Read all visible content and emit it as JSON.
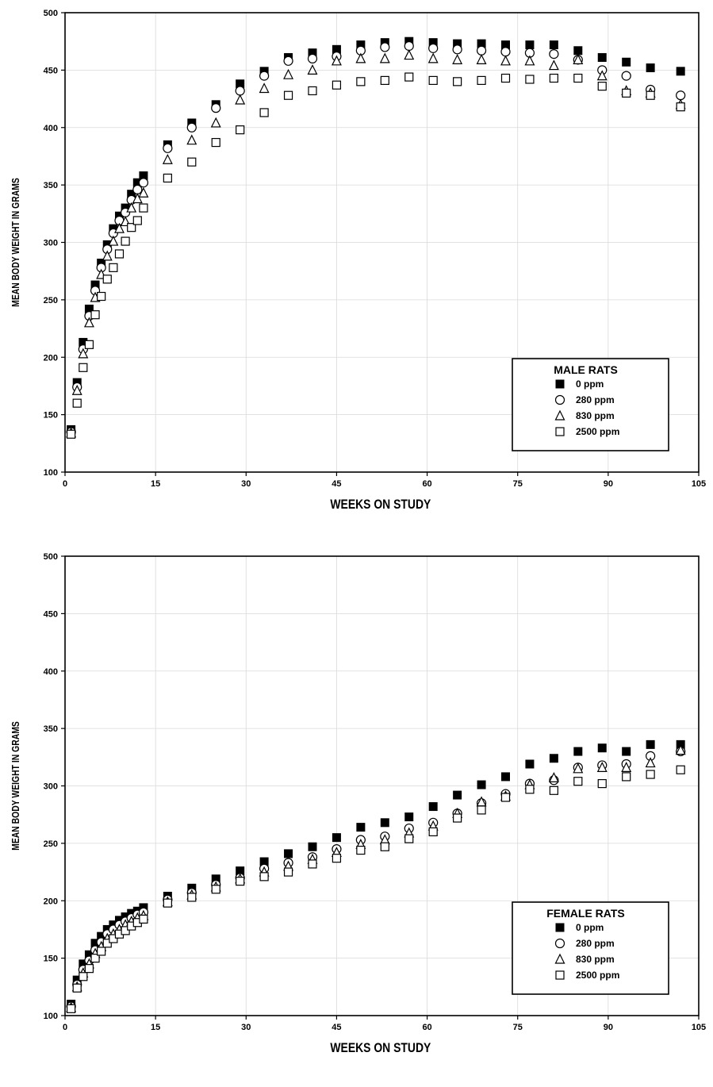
{
  "chart_data": [
    {
      "type": "scatter",
      "xlabel": "WEEKS ON STUDY",
      "ylabel": "MEAN BODY WEIGHT IN GRAMS",
      "xlim": [
        0,
        105
      ],
      "ylim": [
        100,
        500
      ],
      "xticks": [
        0,
        15,
        30,
        45,
        60,
        75,
        90,
        105
      ],
      "yticks": [
        100,
        150,
        200,
        250,
        300,
        350,
        400,
        450,
        500
      ],
      "grid": true,
      "legend": {
        "title": "MALE RATS",
        "placement": "bottom-right"
      },
      "x": [
        1,
        2,
        3,
        4,
        5,
        6,
        7,
        8,
        9,
        10,
        11,
        12,
        13,
        17,
        21,
        25,
        29,
        33,
        37,
        41,
        45,
        49,
        53,
        57,
        61,
        65,
        69,
        73,
        77,
        81,
        85,
        89,
        93,
        97,
        102
      ],
      "series": [
        {
          "name": "0 ppm",
          "marker": "filled-square",
          "values": [
            137,
            178,
            213,
            242,
            263,
            282,
            298,
            312,
            323,
            330,
            342,
            352,
            358,
            385,
            404,
            420,
            438,
            449,
            461,
            465,
            468,
            472,
            474,
            475,
            474,
            473,
            473,
            472,
            472,
            472,
            467,
            461,
            457,
            452,
            449
          ]
        },
        {
          "name": "280 ppm",
          "marker": "open-circle",
          "values": [
            135,
            174,
            207,
            236,
            258,
            278,
            294,
            308,
            319,
            326,
            337,
            346,
            352,
            382,
            400,
            417,
            432,
            445,
            458,
            460,
            462,
            467,
            470,
            471,
            469,
            468,
            467,
            466,
            465,
            464,
            459,
            450,
            445,
            433,
            428
          ]
        },
        {
          "name": "830 ppm",
          "marker": "open-triangle",
          "values": [
            134,
            171,
            203,
            230,
            252,
            272,
            288,
            301,
            312,
            318,
            330,
            338,
            343,
            372,
            389,
            404,
            424,
            434,
            446,
            450,
            458,
            460,
            460,
            463,
            460,
            459,
            459,
            458,
            458,
            454,
            459,
            445,
            432,
            430,
            420
          ]
        },
        {
          "name": "2500 ppm",
          "marker": "open-square",
          "values": [
            133,
            160,
            191,
            211,
            237,
            253,
            268,
            278,
            290,
            301,
            313,
            319,
            330,
            356,
            370,
            387,
            398,
            413,
            428,
            432,
            437,
            440,
            441,
            444,
            441,
            440,
            441,
            443,
            442,
            443,
            443,
            436,
            430,
            428,
            418
          ]
        }
      ]
    },
    {
      "type": "scatter",
      "xlabel": "WEEKS ON STUDY",
      "ylabel": "MEAN BODY WEIGHT IN GRAMS",
      "xlim": [
        0,
        105
      ],
      "ylim": [
        100,
        500
      ],
      "xticks": [
        0,
        15,
        30,
        45,
        60,
        75,
        90,
        105
      ],
      "yticks": [
        100,
        150,
        200,
        250,
        300,
        350,
        400,
        450,
        500
      ],
      "grid": true,
      "legend": {
        "title": "FEMALE RATS",
        "placement": "bottom-right"
      },
      "x": [
        1,
        2,
        3,
        4,
        5,
        6,
        7,
        8,
        9,
        10,
        11,
        12,
        13,
        17,
        21,
        25,
        29,
        33,
        37,
        41,
        45,
        49,
        53,
        57,
        61,
        65,
        69,
        73,
        77,
        81,
        85,
        89,
        93,
        97,
        102
      ],
      "series": [
        {
          "name": "0 ppm",
          "marker": "filled-square",
          "values": [
            110,
            131,
            145,
            153,
            163,
            169,
            175,
            179,
            183,
            186,
            189,
            191,
            194,
            204,
            211,
            219,
            226,
            234,
            241,
            247,
            255,
            264,
            268,
            273,
            282,
            292,
            301,
            308,
            319,
            324,
            330,
            333,
            330,
            336,
            336
          ]
        },
        {
          "name": "280 ppm",
          "marker": "open-circle",
          "values": [
            108,
            127,
            140,
            148,
            157,
            164,
            171,
            175,
            179,
            182,
            185,
            188,
            190,
            201,
            207,
            214,
            220,
            228,
            233,
            238,
            245,
            253,
            256,
            263,
            268,
            276,
            285,
            293,
            302,
            305,
            316,
            318,
            319,
            326,
            330
          ]
        },
        {
          "name": "830 ppm",
          "marker": "open-triangle",
          "values": [
            107,
            125,
            137,
            145,
            154,
            160,
            167,
            171,
            175,
            179,
            182,
            185,
            187,
            199,
            205,
            212,
            219,
            225,
            230,
            236,
            242,
            249,
            253,
            259,
            265,
            276,
            286,
            291,
            301,
            307,
            315,
            316,
            316,
            320,
            331
          ]
        },
        {
          "name": "2500 ppm",
          "marker": "open-square",
          "values": [
            106,
            124,
            134,
            141,
            150,
            156,
            163,
            167,
            171,
            174,
            178,
            181,
            184,
            198,
            203,
            210,
            217,
            221,
            225,
            232,
            237,
            244,
            247,
            254,
            260,
            272,
            279,
            290,
            297,
            296,
            304,
            302,
            308,
            310,
            314
          ]
        }
      ]
    }
  ]
}
